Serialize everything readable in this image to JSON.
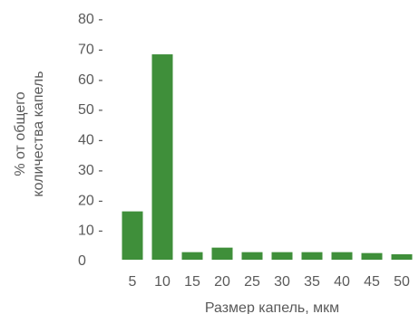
{
  "chart_data": {
    "type": "bar",
    "categories": [
      "5",
      "10",
      "15",
      "20",
      "25",
      "30",
      "35",
      "40",
      "45",
      "50"
    ],
    "values": [
      16,
      68,
      2.5,
      4,
      2.5,
      2.5,
      2.5,
      2.5,
      2.2,
      1.8
    ],
    "xlabel": "Размер капель, мкм",
    "ylabel_lines": [
      "% от общего",
      "количества капель"
    ],
    "y_tick_labels": [
      "0",
      "10 -",
      "20 -",
      "30 -",
      "40 -",
      "50 -",
      "60 -",
      "70 -",
      "80 -"
    ],
    "y_ticks": [
      0,
      10,
      20,
      30,
      40,
      50,
      60,
      70,
      80
    ],
    "ylim": [
      0,
      80
    ],
    "grid": false,
    "bar_color": "#3f8f3a"
  }
}
